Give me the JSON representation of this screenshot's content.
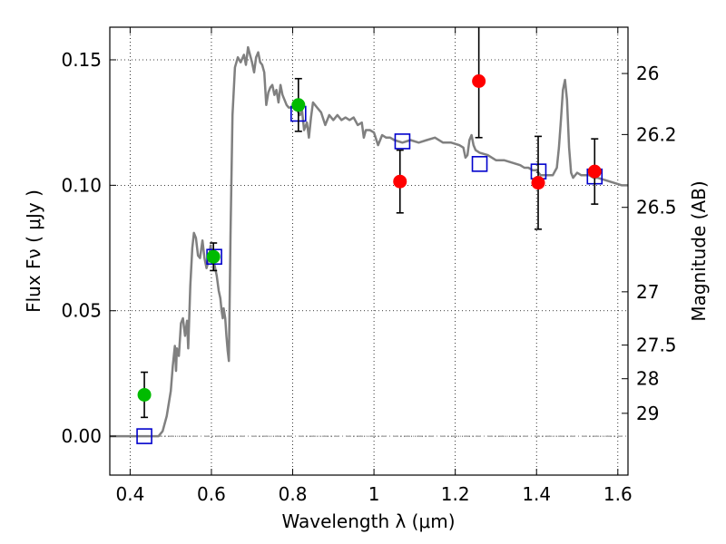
{
  "chart_data": {
    "type": "scatter",
    "xlabel": "Wavelength  λ (μm)",
    "ylabel": "Flux  Fν  ( μJy )",
    "y2label": "Magnitude (AB)",
    "xlim": [
      0.35,
      1.625
    ],
    "ylim": [
      -0.0155,
      0.163
    ],
    "grid": true,
    "x_ticks": [
      {
        "value": 0.4,
        "label": "0.4"
      },
      {
        "value": 0.6,
        "label": "0.6"
      },
      {
        "value": 0.8,
        "label": "0.8"
      },
      {
        "value": 1.0,
        "label": "1"
      },
      {
        "value": 1.2,
        "label": "1.2"
      },
      {
        "value": 1.4,
        "label": "1.4"
      },
      {
        "value": 1.6,
        "label": "1.6"
      }
    ],
    "y_ticks": [
      {
        "value": 0.0,
        "label": "0.00"
      },
      {
        "value": 0.05,
        "label": "0.05"
      },
      {
        "value": 0.1,
        "label": "0.10"
      },
      {
        "value": 0.15,
        "label": "0.15"
      }
    ],
    "y2_ticks": [
      {
        "value": 26,
        "label": "26"
      },
      {
        "value": 26.2,
        "label": "26.2"
      },
      {
        "value": 26.5,
        "label": "26.5"
      },
      {
        "value": 27,
        "label": "27"
      },
      {
        "value": 27.5,
        "label": "27.5"
      },
      {
        "value": 28,
        "label": "28"
      },
      {
        "value": 29,
        "label": "29"
      }
    ],
    "colors": {
      "model_line": "#808080",
      "green_points": "#00bb00",
      "red_points": "#ff0000",
      "model_boxes": "#0000cc",
      "errorbar": "#000000",
      "zero_line": "#808080"
    },
    "series": [
      {
        "kind": "line",
        "points": [
          [
            0.35,
            0.0
          ],
          [
            0.47,
            0.0
          ],
          [
            0.48,
            0.002
          ],
          [
            0.49,
            0.008
          ],
          [
            0.5,
            0.018
          ],
          [
            0.505,
            0.028
          ],
          [
            0.51,
            0.036
          ],
          [
            0.513,
            0.026
          ],
          [
            0.515,
            0.035
          ],
          [
            0.52,
            0.032
          ],
          [
            0.525,
            0.045
          ],
          [
            0.53,
            0.047
          ],
          [
            0.535,
            0.04
          ],
          [
            0.54,
            0.046
          ],
          [
            0.543,
            0.035
          ],
          [
            0.548,
            0.06
          ],
          [
            0.553,
            0.075
          ],
          [
            0.557,
            0.081
          ],
          [
            0.562,
            0.079
          ],
          [
            0.567,
            0.072
          ],
          [
            0.572,
            0.071
          ],
          [
            0.578,
            0.078
          ],
          [
            0.583,
            0.071
          ],
          [
            0.588,
            0.067
          ],
          [
            0.593,
            0.07
          ],
          [
            0.598,
            0.076
          ],
          [
            0.603,
            0.07
          ],
          [
            0.608,
            0.068
          ],
          [
            0.613,
            0.064
          ],
          [
            0.618,
            0.058
          ],
          [
            0.622,
            0.055
          ],
          [
            0.625,
            0.05
          ],
          [
            0.628,
            0.047
          ],
          [
            0.63,
            0.051
          ],
          [
            0.634,
            0.047
          ],
          [
            0.637,
            0.04
          ],
          [
            0.64,
            0.034
          ],
          [
            0.643,
            0.03
          ],
          [
            0.647,
            0.08
          ],
          [
            0.652,
            0.128
          ],
          [
            0.658,
            0.147
          ],
          [
            0.665,
            0.151
          ],
          [
            0.672,
            0.149
          ],
          [
            0.68,
            0.152
          ],
          [
            0.685,
            0.148
          ],
          [
            0.69,
            0.155
          ],
          [
            0.695,
            0.152
          ],
          [
            0.7,
            0.149
          ],
          [
            0.705,
            0.145
          ],
          [
            0.71,
            0.151
          ],
          [
            0.715,
            0.153
          ],
          [
            0.72,
            0.149
          ],
          [
            0.725,
            0.148
          ],
          [
            0.73,
            0.145
          ],
          [
            0.735,
            0.132
          ],
          [
            0.74,
            0.137
          ],
          [
            0.745,
            0.139
          ],
          [
            0.75,
            0.14
          ],
          [
            0.755,
            0.136
          ],
          [
            0.76,
            0.138
          ],
          [
            0.765,
            0.133
          ],
          [
            0.77,
            0.14
          ],
          [
            0.775,
            0.136
          ],
          [
            0.78,
            0.134
          ],
          [
            0.785,
            0.132
          ],
          [
            0.79,
            0.131
          ],
          [
            0.8,
            0.131
          ],
          [
            0.81,
            0.13
          ],
          [
            0.818,
            0.128
          ],
          [
            0.823,
            0.13
          ],
          [
            0.828,
            0.122
          ],
          [
            0.835,
            0.125
          ],
          [
            0.84,
            0.119
          ],
          [
            0.845,
            0.127
          ],
          [
            0.85,
            0.133
          ],
          [
            0.86,
            0.131
          ],
          [
            0.87,
            0.129
          ],
          [
            0.88,
            0.124
          ],
          [
            0.89,
            0.128
          ],
          [
            0.9,
            0.126
          ],
          [
            0.91,
            0.128
          ],
          [
            0.92,
            0.126
          ],
          [
            0.93,
            0.127
          ],
          [
            0.94,
            0.126
          ],
          [
            0.95,
            0.127
          ],
          [
            0.96,
            0.124
          ],
          [
            0.97,
            0.125
          ],
          [
            0.975,
            0.119
          ],
          [
            0.98,
            0.122
          ],
          [
            0.99,
            0.122
          ],
          [
            1.0,
            0.121
          ],
          [
            1.01,
            0.116
          ],
          [
            1.02,
            0.12
          ],
          [
            1.03,
            0.119
          ],
          [
            1.04,
            0.119
          ],
          [
            1.05,
            0.118
          ],
          [
            1.07,
            0.117
          ],
          [
            1.09,
            0.118
          ],
          [
            1.11,
            0.117
          ],
          [
            1.13,
            0.118
          ],
          [
            1.15,
            0.119
          ],
          [
            1.17,
            0.117
          ],
          [
            1.19,
            0.117
          ],
          [
            1.21,
            0.116
          ],
          [
            1.22,
            0.115
          ],
          [
            1.225,
            0.111
          ],
          [
            1.23,
            0.112
          ],
          [
            1.235,
            0.118
          ],
          [
            1.24,
            0.12
          ],
          [
            1.245,
            0.116
          ],
          [
            1.25,
            0.114
          ],
          [
            1.26,
            0.113
          ],
          [
            1.28,
            0.112
          ],
          [
            1.3,
            0.11
          ],
          [
            1.32,
            0.11
          ],
          [
            1.34,
            0.109
          ],
          [
            1.36,
            0.108
          ],
          [
            1.37,
            0.107
          ],
          [
            1.38,
            0.107
          ],
          [
            1.39,
            0.106
          ],
          [
            1.4,
            0.106
          ],
          [
            1.41,
            0.104
          ],
          [
            1.42,
            0.104
          ],
          [
            1.43,
            0.104
          ],
          [
            1.44,
            0.104
          ],
          [
            1.45,
            0.107
          ],
          [
            1.455,
            0.115
          ],
          [
            1.46,
            0.126
          ],
          [
            1.465,
            0.138
          ],
          [
            1.47,
            0.142
          ],
          [
            1.475,
            0.134
          ],
          [
            1.48,
            0.115
          ],
          [
            1.485,
            0.105
          ],
          [
            1.49,
            0.103
          ],
          [
            1.5,
            0.105
          ],
          [
            1.51,
            0.104
          ],
          [
            1.52,
            0.104
          ],
          [
            1.53,
            0.104
          ],
          [
            1.54,
            0.103
          ],
          [
            1.55,
            0.103
          ],
          [
            1.57,
            0.102
          ],
          [
            1.59,
            0.101
          ],
          [
            1.61,
            0.1
          ],
          [
            1.625,
            0.1
          ]
        ]
      },
      {
        "kind": "points-with-error",
        "marker": "circle",
        "points": [
          {
            "x": 0.435,
            "y": 0.0165,
            "err": 0.009
          },
          {
            "x": 0.605,
            "y": 0.0715,
            "err": 0.0055
          },
          {
            "x": 0.814,
            "y": 0.132,
            "err": 0.0105
          }
        ]
      },
      {
        "kind": "points-with-error",
        "marker": "circle",
        "points": [
          {
            "x": 1.064,
            "y": 0.1015,
            "err": 0.0125
          },
          {
            "x": 1.258,
            "y": 0.1415,
            "err": 0.0225
          },
          {
            "x": 1.404,
            "y": 0.101,
            "err": 0.0185
          },
          {
            "x": 1.543,
            "y": 0.1055,
            "err": 0.013
          }
        ]
      },
      {
        "kind": "points",
        "marker": "square",
        "points": [
          {
            "x": 0.435,
            "y": 0.0
          },
          {
            "x": 0.607,
            "y": 0.0715
          },
          {
            "x": 0.814,
            "y": 0.1285
          },
          {
            "x": 1.07,
            "y": 0.1175
          },
          {
            "x": 1.26,
            "y": 0.1085
          },
          {
            "x": 1.405,
            "y": 0.1055
          },
          {
            "x": 1.543,
            "y": 0.1035
          }
        ]
      }
    ]
  }
}
